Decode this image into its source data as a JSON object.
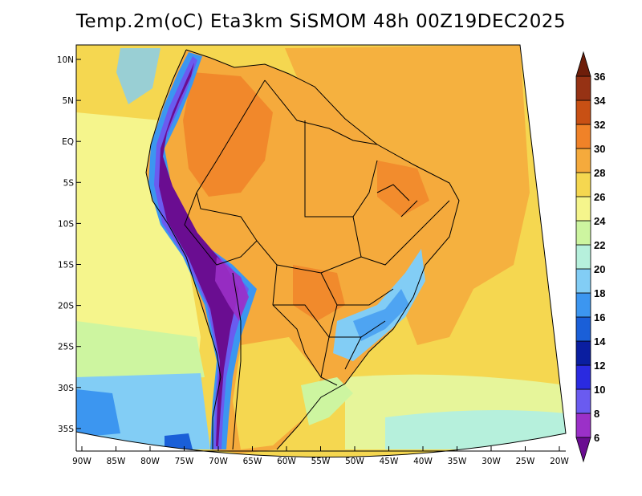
{
  "title": "Temp.2m(oC) Eta3km SiSMOM 48h 00Z19DEC2025",
  "lat_labels": [
    "10N",
    "5N",
    "EQ",
    "5S",
    "10S",
    "15S",
    "20S",
    "25S",
    "30S",
    "35S"
  ],
  "lon_labels": [
    "90W",
    "85W",
    "80W",
    "75W",
    "70W",
    "65W",
    "60W",
    "55W",
    "50W",
    "45W",
    "40W",
    "35W",
    "30W",
    "25W",
    "20W"
  ],
  "colorbar": {
    "labels": [
      "6",
      "8",
      "10",
      "12",
      "14",
      "16",
      "18",
      "20",
      "22",
      "24",
      "26",
      "28",
      "30",
      "32",
      "34",
      "36"
    ],
    "colors": [
      "#6a0d91",
      "#9b30c8",
      "#6a5bf0",
      "#2a2ae0",
      "#0a1ea0",
      "#1a5fd8",
      "#3c96f0",
      "#82cdf5",
      "#b6f0dc",
      "#cdf5a0",
      "#f5f58c",
      "#f5d750",
      "#f5aa3c",
      "#f08228",
      "#c85014",
      "#963214",
      "#6e1e0a"
    ]
  },
  "chart_data": {
    "type": "heatmap",
    "title": "Temp.2m(oC) Eta3km SiSMOM 48h 00Z19DEC2025",
    "variable": "Temp.2m",
    "units": "oC",
    "lon_range": [
      -90,
      -20
    ],
    "lat_range": [
      -38,
      12
    ],
    "colorbar_levels": [
      6,
      8,
      10,
      12,
      14,
      16,
      18,
      20,
      22,
      24,
      26,
      28,
      30,
      32,
      34,
      36
    ]
  }
}
